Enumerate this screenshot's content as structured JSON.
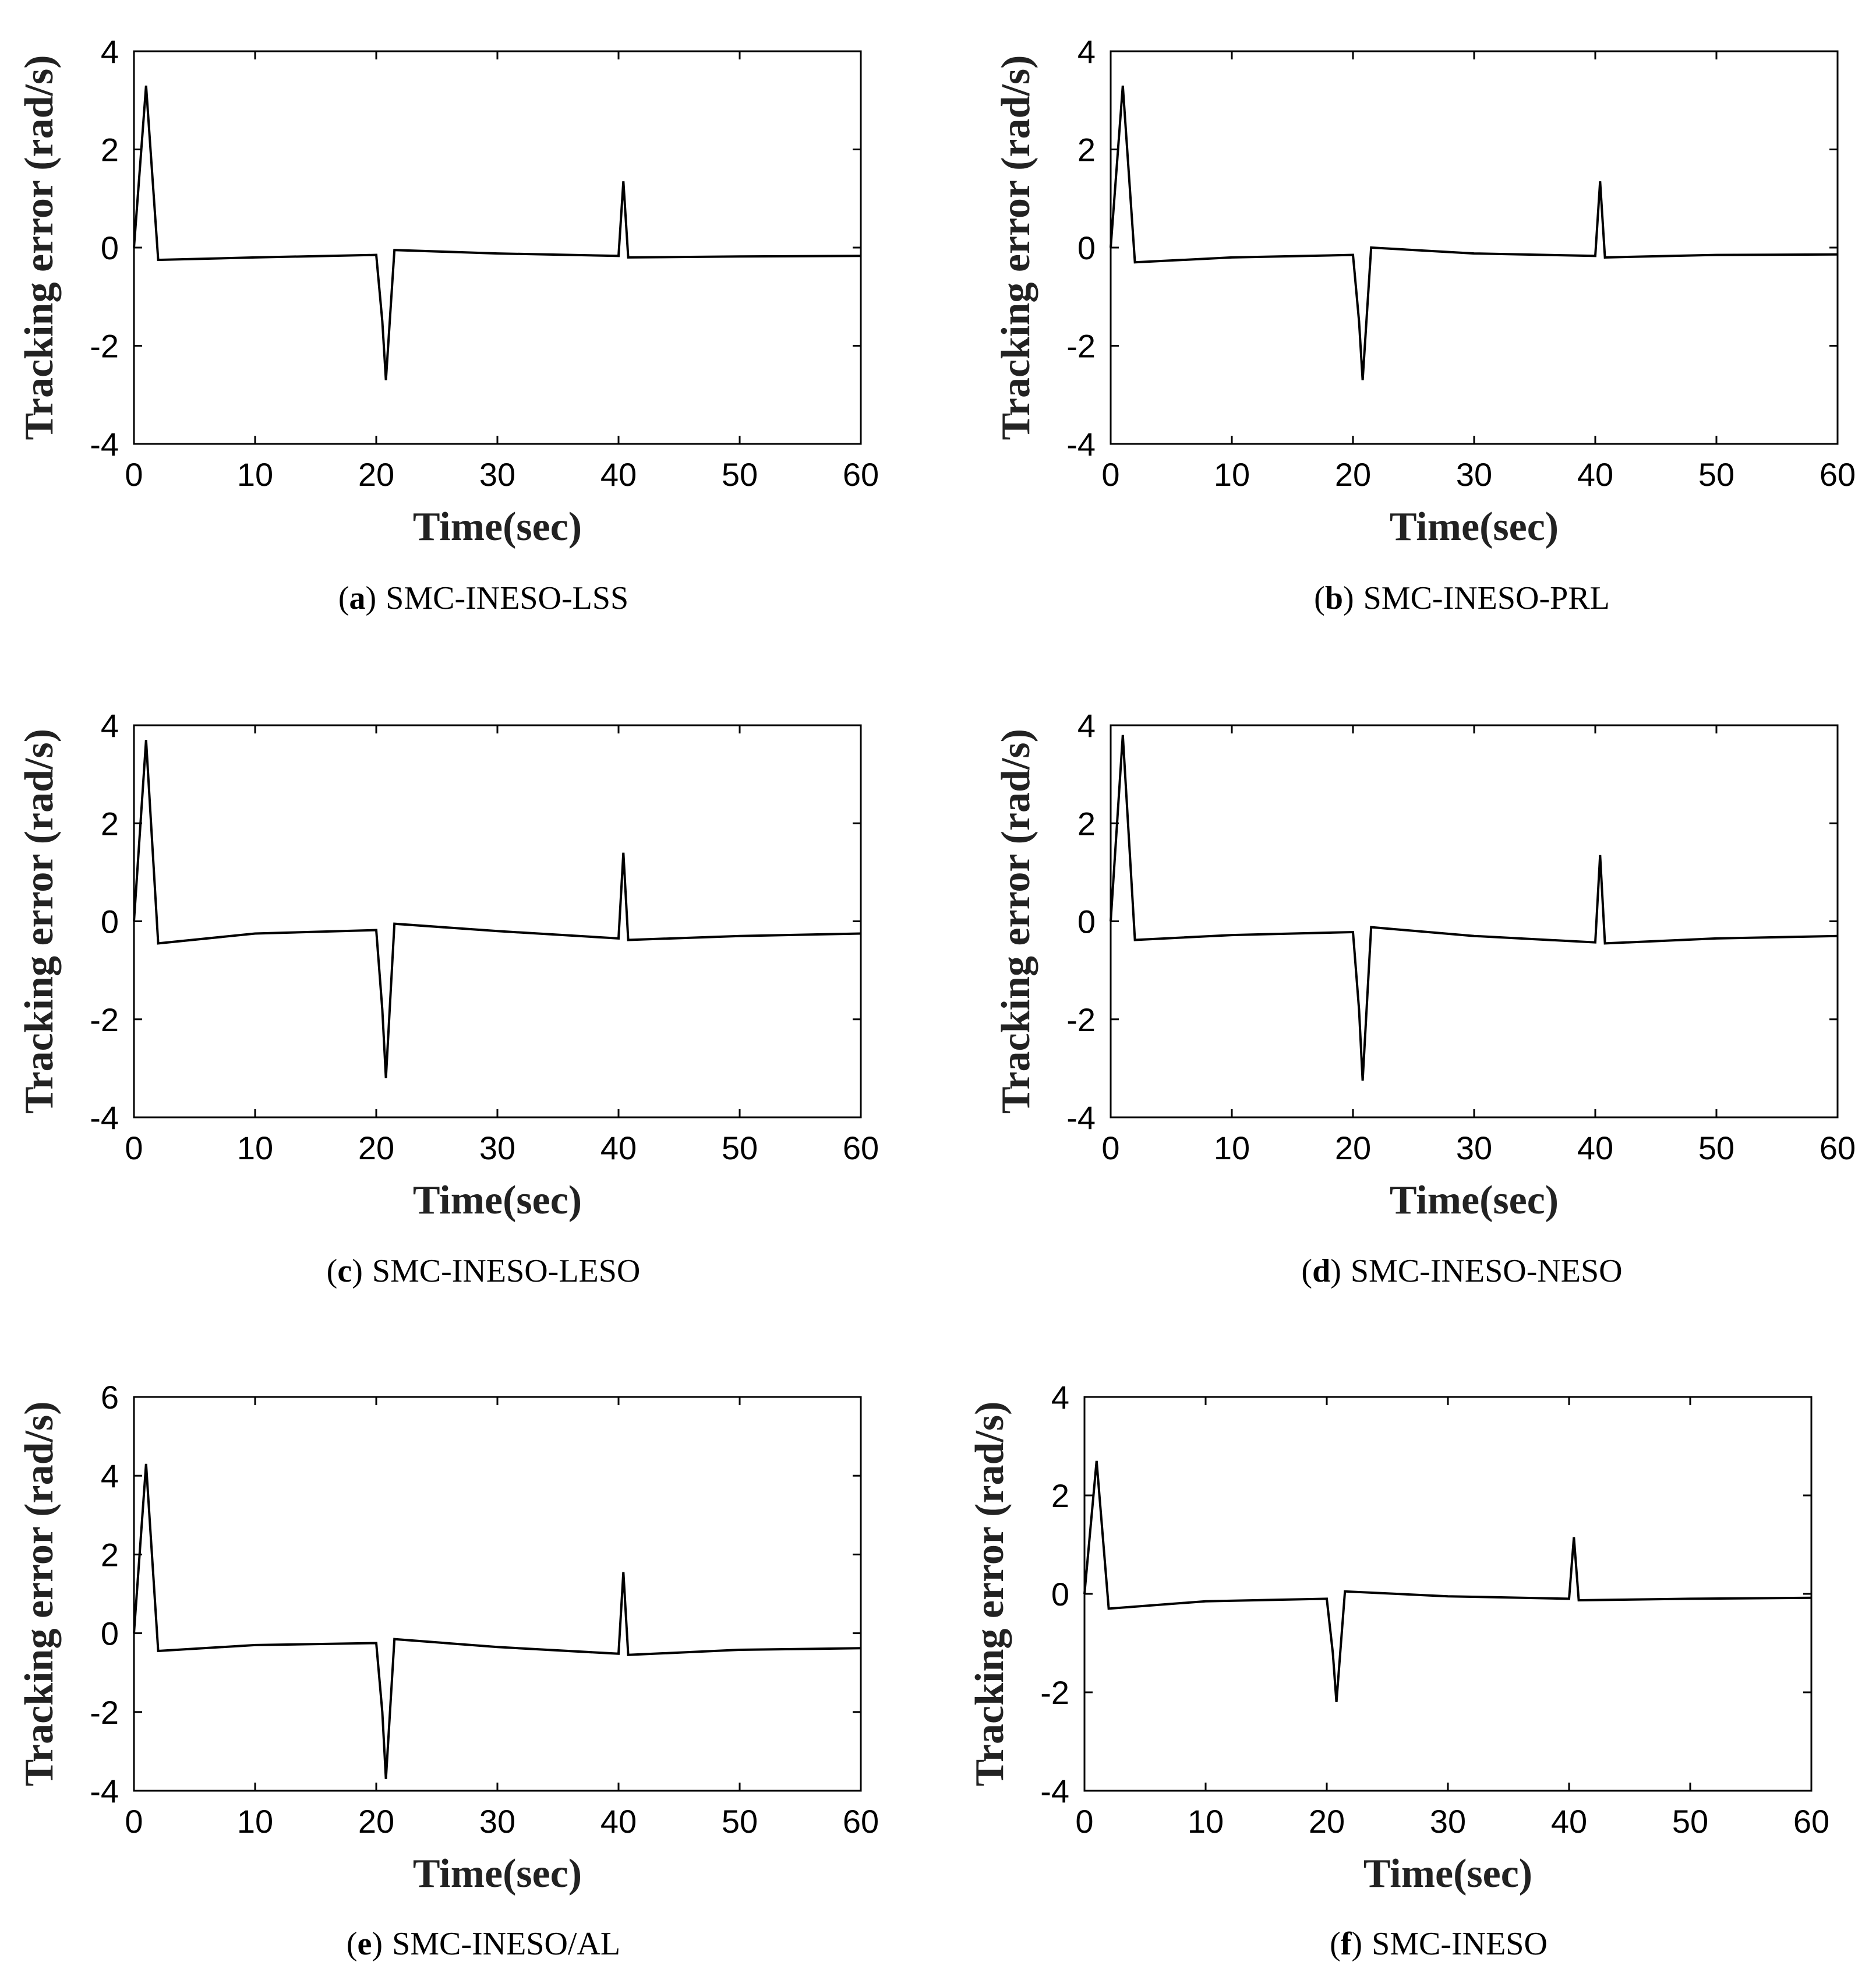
{
  "chart_data": [
    {
      "type": "line",
      "letter": "a",
      "caption_open": "(",
      "caption_close": ")",
      "caption": "SMC-INESO-LSS",
      "xlabel": "Time(sec)",
      "ylabel": "Tracking error (rad/s)",
      "xlim": [
        0,
        60
      ],
      "ylim": [
        -4,
        4
      ],
      "xticks": [
        0,
        10,
        20,
        30,
        40,
        50,
        60
      ],
      "yticks": [
        -4,
        -2,
        0,
        2,
        4
      ],
      "series": [
        {
          "name": "tracking error",
          "x": [
            0,
            1,
            2,
            10,
            20,
            20.5,
            20.8,
            21.5,
            30,
            40,
            40.4,
            40.8,
            50,
            60
          ],
          "y": [
            0,
            3.3,
            -0.25,
            -0.2,
            -0.15,
            -1.5,
            -2.7,
            -0.05,
            -0.12,
            -0.17,
            1.35,
            -0.2,
            -0.18,
            -0.17
          ]
        }
      ]
    },
    {
      "type": "line",
      "letter": "b",
      "caption_open": "(",
      "caption_close": ")",
      "caption": "SMC-INESO-PRL",
      "xlabel": "Time(sec)",
      "ylabel": "Tracking error (rad/s)",
      "xlim": [
        0,
        60
      ],
      "ylim": [
        -4,
        4
      ],
      "xticks": [
        0,
        10,
        20,
        30,
        40,
        50,
        60
      ],
      "yticks": [
        -4,
        -2,
        0,
        2,
        4
      ],
      "series": [
        {
          "name": "tracking error",
          "x": [
            0,
            1,
            2,
            10,
            20,
            20.5,
            20.8,
            21.5,
            30,
            40,
            40.4,
            40.8,
            50,
            60
          ],
          "y": [
            0,
            3.3,
            -0.3,
            -0.2,
            -0.15,
            -1.5,
            -2.7,
            0,
            -0.12,
            -0.17,
            1.35,
            -0.2,
            -0.15,
            -0.14
          ]
        }
      ]
    },
    {
      "type": "line",
      "letter": "c",
      "caption_open": "(",
      "caption_close": ")",
      "caption": "SMC-INESO-LESO",
      "xlabel": "Time(sec)",
      "ylabel": "Tracking error (rad/s)",
      "xlim": [
        0,
        60
      ],
      "ylim": [
        -4,
        4
      ],
      "xticks": [
        0,
        10,
        20,
        30,
        40,
        50,
        60
      ],
      "yticks": [
        -4,
        -2,
        0,
        2,
        4
      ],
      "series": [
        {
          "name": "tracking error",
          "x": [
            0,
            1,
            2,
            10,
            20,
            20.5,
            20.8,
            21.5,
            30,
            40,
            40.4,
            40.8,
            50,
            60
          ],
          "y": [
            0,
            3.7,
            -0.45,
            -0.25,
            -0.18,
            -1.8,
            -3.2,
            -0.05,
            -0.2,
            -0.35,
            1.4,
            -0.38,
            -0.3,
            -0.25
          ]
        }
      ]
    },
    {
      "type": "line",
      "letter": "d",
      "caption_open": "(",
      "caption_close": ")",
      "caption": "SMC-INESO-NESO",
      "xlabel": "Time(sec)",
      "ylabel": "Tracking error (rad/s)",
      "xlim": [
        0,
        60
      ],
      "ylim": [
        -4,
        4
      ],
      "xticks": [
        0,
        10,
        20,
        30,
        40,
        50,
        60
      ],
      "yticks": [
        -4,
        -2,
        0,
        2,
        4
      ],
      "series": [
        {
          "name": "tracking error",
          "x": [
            0,
            1,
            2,
            10,
            20,
            20.5,
            20.8,
            21.5,
            30,
            40,
            40.4,
            40.8,
            50,
            60
          ],
          "y": [
            0,
            3.8,
            -0.38,
            -0.28,
            -0.22,
            -1.8,
            -3.25,
            -0.12,
            -0.3,
            -0.43,
            1.35,
            -0.45,
            -0.35,
            -0.3
          ]
        }
      ]
    },
    {
      "type": "line",
      "letter": "e",
      "caption_open": "(",
      "caption_close": ")",
      "caption": "SMC-INESO/AL",
      "xlabel": "Time(sec)",
      "ylabel": "Tracking error (rad/s)",
      "xlim": [
        0,
        60
      ],
      "ylim": [
        -4,
        6
      ],
      "xticks": [
        0,
        10,
        20,
        30,
        40,
        50,
        60
      ],
      "yticks": [
        -4,
        -2,
        0,
        2,
        4,
        6
      ],
      "series": [
        {
          "name": "tracking error",
          "x": [
            0,
            1,
            2,
            10,
            20,
            20.5,
            20.8,
            21.5,
            30,
            40,
            40.4,
            40.8,
            50,
            60
          ],
          "y": [
            0,
            4.3,
            -0.45,
            -0.3,
            -0.25,
            -2,
            -3.7,
            -0.15,
            -0.35,
            -0.52,
            1.55,
            -0.55,
            -0.42,
            -0.38
          ]
        }
      ]
    },
    {
      "type": "line",
      "letter": "f",
      "caption_open": "(",
      "caption_close": ")",
      "caption": "SMC-INESO",
      "xlabel": "Time(sec)",
      "ylabel": "Tracking error (rad/s)",
      "xlim": [
        0,
        60
      ],
      "ylim": [
        -4,
        4
      ],
      "xticks": [
        0,
        10,
        20,
        30,
        40,
        50,
        60
      ],
      "yticks": [
        -4,
        -2,
        0,
        2,
        4
      ],
      "series": [
        {
          "name": "tracking error",
          "x": [
            0,
            1,
            2,
            10,
            20,
            20.5,
            20.8,
            21.5,
            30,
            40,
            40.4,
            40.8,
            50,
            60
          ],
          "y": [
            0,
            2.7,
            -0.3,
            -0.15,
            -0.1,
            -1.2,
            -2.2,
            0.05,
            -0.05,
            -0.1,
            1.15,
            -0.13,
            -0.1,
            -0.08
          ]
        }
      ]
    }
  ]
}
